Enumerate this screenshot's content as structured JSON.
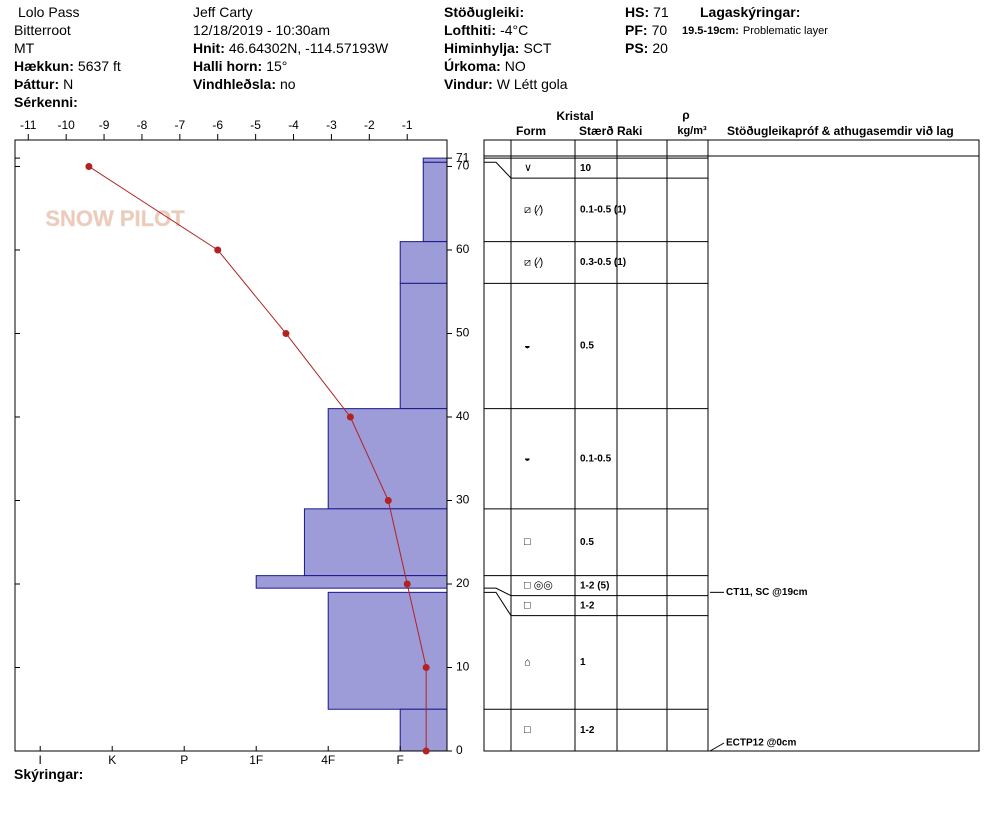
{
  "header": {
    "columns": [
      [
        {
          "value": "Lolo Pass"
        },
        {
          "value": "Bitterroot"
        },
        {
          "value": "MT"
        },
        {
          "label": "Hækkun:",
          "value": "5637 ft"
        },
        {
          "label": "Þáttur:",
          "value": "N"
        },
        {
          "label": "Sérkenni:"
        }
      ],
      [
        {
          "value": "Jeff Carty"
        },
        {
          "value": "12/18/2019 - 10:30am"
        },
        {
          "label": "Hnit:",
          "value": "46.64302N, -114.57193W"
        },
        {
          "label": "Halli horn:",
          "value": "15°"
        },
        {
          "label": "Vindhleðsla:",
          "value": "no"
        }
      ],
      [
        {
          "label": "Stöðugleiki:"
        },
        {
          "label": "Lofthiti:",
          "value": "-4°C"
        },
        {
          "label": "Himinhylja:",
          "value": "SCT"
        },
        {
          "label": "Úrkoma:",
          "value": "NO"
        },
        {
          "label": "Vindur:",
          "value": "W Létt gola"
        }
      ],
      [
        {
          "label": "HS:",
          "value": 71
        },
        {
          "label": "PF:",
          "value": 70
        },
        {
          "label": "PS:",
          "value": 20
        }
      ]
    ],
    "notes_title": "Lagaskýringar:",
    "notes": [
      {
        "label": "19.5-19cm:",
        "value": "Problematic layer"
      }
    ]
  },
  "table_headers": {
    "crystal": "Kristal",
    "form": "Form",
    "size": "Stærð",
    "moisture": "Raki",
    "density_symbol": "ρ",
    "density_unit": "kg/m³",
    "comments": "Stöðugleikapróf & athugasemdir við lag"
  },
  "legend_title": "Skýringar:",
  "watermark": "SNOW PILOT",
  "chart_data": {
    "type": "snowprofile",
    "xlim": [
      -11.35,
      0.05
    ],
    "xticks": [
      -11,
      -10,
      -9,
      -8,
      -7,
      -6,
      -5,
      -4,
      -3,
      -2,
      -1
    ],
    "ylim": [
      0,
      73.17
    ],
    "yticks": [
      0,
      10,
      20,
      30,
      40,
      50,
      60,
      70,
      71
    ],
    "x2lim": [
      6.35,
      0.35
    ],
    "x2ticks": [
      {
        "value": 6,
        "label": "I"
      },
      {
        "value": 5,
        "label": "K"
      },
      {
        "value": 4,
        "label": "P"
      },
      {
        "value": 3,
        "label": "1F"
      },
      {
        "value": 2,
        "label": "4F"
      },
      {
        "value": 1,
        "label": "F"
      }
    ],
    "hardness_color": "#9d9bd8",
    "temp_color": "#b22222",
    "temperature": {
      "heights": [
        70,
        60,
        50,
        40,
        30,
        20,
        10,
        0
      ],
      "values": [
        -9.4,
        -6,
        -4.2,
        -2.5,
        -1.5,
        -1,
        -0.5,
        -0.5
      ]
    },
    "layers": [
      {
        "top": 71,
        "bottom": 70.5,
        "hardness": 0.68,
        "form": "∨",
        "size": "10"
      },
      {
        "top": 70.5,
        "bottom": 61,
        "hardness": 0.68,
        "form": "⧄ (⁄)",
        "size": "0.1-0.5 (1)"
      },
      {
        "top": 61,
        "bottom": 56,
        "hardness": 1,
        "form": "⧄ (⁄)",
        "size": "0.3-0.5 (1)"
      },
      {
        "top": 56,
        "bottom": 41,
        "hardness": 1,
        "form": "◒",
        "size": "0.5"
      },
      {
        "top": 41,
        "bottom": 29,
        "hardness": 2,
        "form": "◒",
        "size": "0.1-0.5"
      },
      {
        "top": 29,
        "bottom": 21,
        "hardness": 2.33,
        "form": "□",
        "size": "0.5"
      },
      {
        "top": 21,
        "bottom": 19.5,
        "hardness": 3,
        "form": "□ ◎◎",
        "size": "1-2 (5)"
      },
      {
        "top": 19.5,
        "bottom": 19,
        "hardness": null,
        "form": "□",
        "size": "1-2"
      },
      {
        "top": 19,
        "bottom": 5,
        "hardness": 2,
        "form": "⌂",
        "size": "1"
      },
      {
        "top": 5,
        "bottom": 0,
        "hardness": 1,
        "form": "□",
        "size": "1-2"
      }
    ],
    "tests": [
      {
        "height": 19,
        "label": "CT11, SC @19cm"
      },
      {
        "height": 0,
        "label": "ECTP12 @0cm"
      }
    ]
  }
}
